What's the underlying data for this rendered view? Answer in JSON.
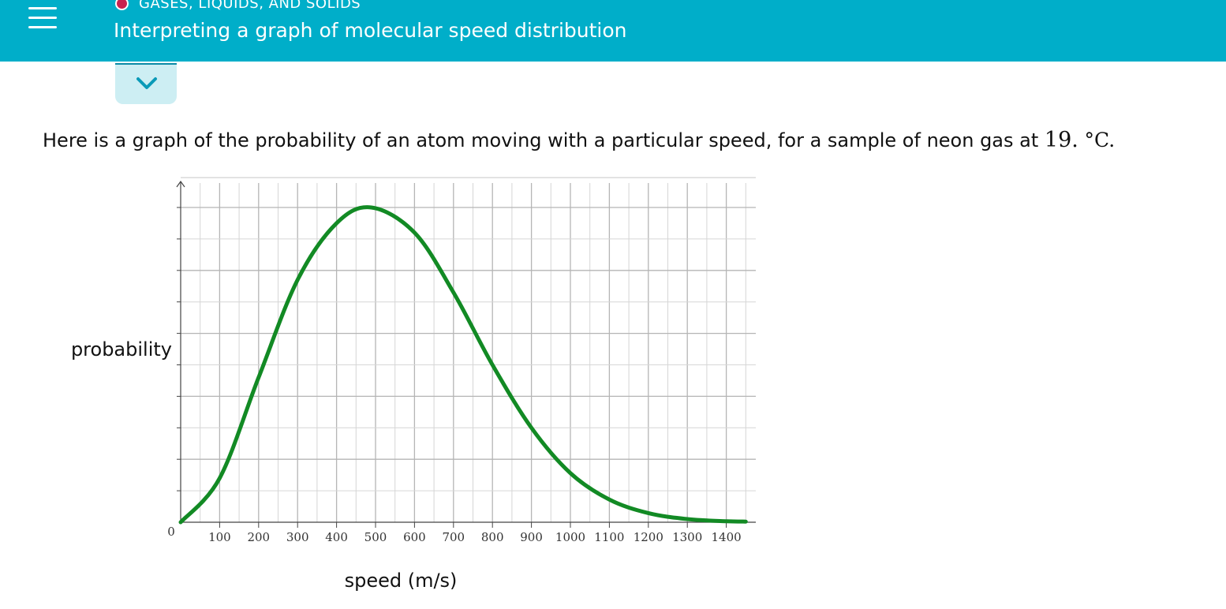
{
  "header": {
    "topic": "GASES, LIQUIDS, AND SOLIDS",
    "title": "Interpreting a graph of molecular speed distribution"
  },
  "question": {
    "text": "Here is a graph of the probability of an atom moving with a particular speed, for a sample of neon gas at",
    "temperature": "19.",
    "unit": "°C."
  },
  "colors": {
    "header_bg": "#00aec9",
    "topic_dot": "#c8224f",
    "curve": "#128a24",
    "grid": "#c8c8c8"
  },
  "icons": {
    "menu": "hamburger-menu-icon",
    "toggle": "chevron-down-icon"
  },
  "chart_data": {
    "type": "line",
    "title": "",
    "xlabel": "speed (m/s)",
    "ylabel": "probability",
    "origin_label": "0",
    "xlim": [
      0,
      1450
    ],
    "ylim": [
      0,
      1
    ],
    "grid": true,
    "x_ticks": [
      100,
      200,
      300,
      400,
      500,
      600,
      700,
      800,
      900,
      1000,
      1100,
      1200,
      1300,
      1400
    ],
    "x_tick_labels": [
      "100",
      "200",
      "300",
      "400",
      "500",
      "600",
      "700",
      "800",
      "900",
      "1000",
      "1100",
      "1200",
      "1300",
      "1400"
    ],
    "series": [
      {
        "x": [
          0,
          100,
          200,
          300,
          400,
          489,
          600,
          700,
          800,
          900,
          1000,
          1100,
          1200,
          1300,
          1400,
          1450
        ],
        "y": [
          0,
          0.14,
          0.46,
          0.77,
          0.95,
          1.0,
          0.92,
          0.73,
          0.5,
          0.3,
          0.156,
          0.072,
          0.029,
          0.01,
          0.003,
          0.002
        ]
      }
    ]
  }
}
